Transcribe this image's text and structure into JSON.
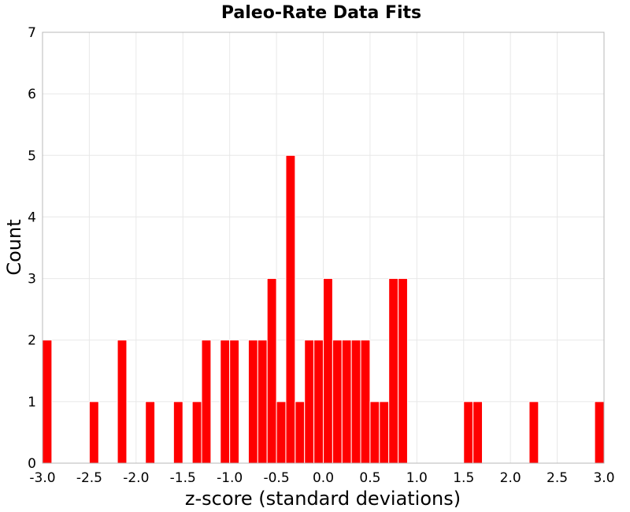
{
  "chart_data": {
    "type": "bar",
    "title": "Paleo-Rate Data Fits",
    "xlabel": "z-score (standard deviations)",
    "ylabel": "Count",
    "xlim": [
      -3.0,
      3.0
    ],
    "ylim": [
      0,
      7
    ],
    "x_ticks": [
      "-3.0",
      "-2.5",
      "-2.0",
      "-1.5",
      "-1.0",
      "-0.5",
      "0.0",
      "0.5",
      "1.0",
      "1.5",
      "2.0",
      "2.5",
      "3.0"
    ],
    "x_tick_values": [
      -3.0,
      -2.5,
      -2.0,
      -1.5,
      -1.0,
      -0.5,
      0.0,
      0.5,
      1.0,
      1.5,
      2.0,
      2.5,
      3.0
    ],
    "y_ticks": [
      "0",
      "1",
      "2",
      "3",
      "4",
      "5",
      "6",
      "7"
    ],
    "y_tick_values": [
      0,
      1,
      2,
      3,
      4,
      5,
      6,
      7
    ],
    "bin_width": 0.1,
    "grid": true,
    "bar_color": "#ff0000",
    "bins": [
      {
        "start": -3.0,
        "count": 2
      },
      {
        "start": -2.5,
        "count": 1
      },
      {
        "start": -2.2,
        "count": 2
      },
      {
        "start": -1.9,
        "count": 1
      },
      {
        "start": -1.6,
        "count": 1
      },
      {
        "start": -1.4,
        "count": 1
      },
      {
        "start": -1.3,
        "count": 2
      },
      {
        "start": -1.1,
        "count": 2
      },
      {
        "start": -1.0,
        "count": 2
      },
      {
        "start": -0.8,
        "count": 2
      },
      {
        "start": -0.7,
        "count": 2
      },
      {
        "start": -0.6,
        "count": 3
      },
      {
        "start": -0.5,
        "count": 1
      },
      {
        "start": -0.4,
        "count": 5
      },
      {
        "start": -0.3,
        "count": 1
      },
      {
        "start": -0.2,
        "count": 2
      },
      {
        "start": -0.1,
        "count": 2
      },
      {
        "start": 0.0,
        "count": 3
      },
      {
        "start": 0.1,
        "count": 2
      },
      {
        "start": 0.2,
        "count": 2
      },
      {
        "start": 0.3,
        "count": 2
      },
      {
        "start": 0.4,
        "count": 2
      },
      {
        "start": 0.5,
        "count": 1
      },
      {
        "start": 0.6,
        "count": 1
      },
      {
        "start": 0.7,
        "count": 3
      },
      {
        "start": 0.8,
        "count": 3
      },
      {
        "start": 1.5,
        "count": 1
      },
      {
        "start": 1.6,
        "count": 1
      },
      {
        "start": 2.2,
        "count": 1
      },
      {
        "start": 2.9,
        "count": 1
      }
    ]
  }
}
